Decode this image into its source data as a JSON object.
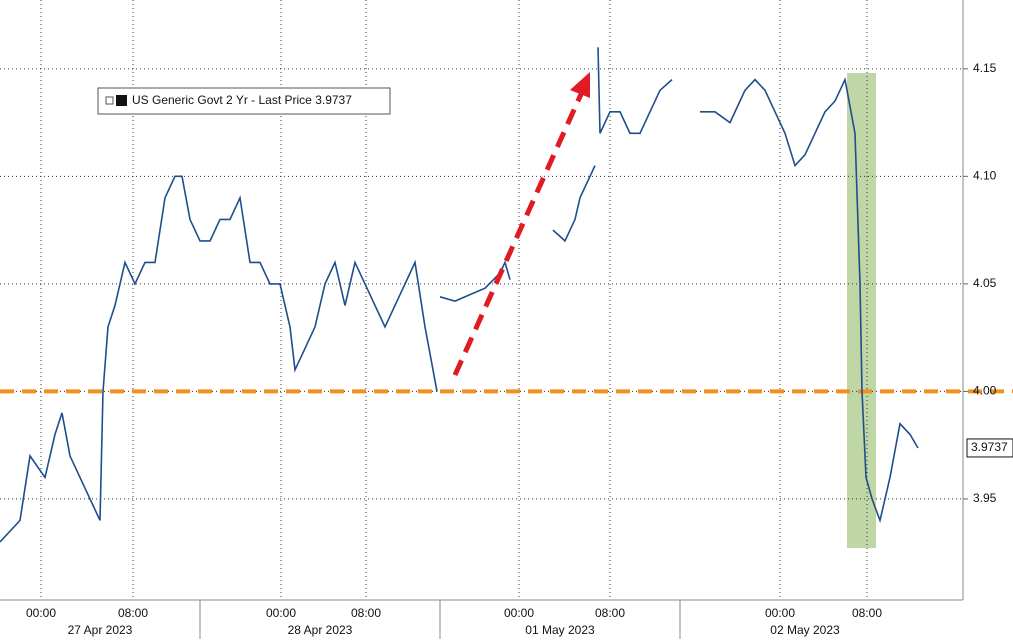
{
  "chart_data": {
    "type": "line",
    "xlim": [
      0,
      96.3
    ],
    "ylim": [
      3.903,
      4.182
    ],
    "xticks": [
      {
        "value": 4.1,
        "label": "00:00"
      },
      {
        "value": 13.3,
        "label": "08:00"
      },
      {
        "value": 28.1,
        "label": "00:00"
      },
      {
        "value": 36.6,
        "label": "08:00"
      },
      {
        "value": 51.9,
        "label": "00:00"
      },
      {
        "value": 61.0,
        "label": "08:00"
      },
      {
        "value": 78.0,
        "label": "00:00"
      },
      {
        "value": 86.7,
        "label": "08:00"
      }
    ],
    "date_labels": [
      {
        "value": 10,
        "label": "27 Apr 2023"
      },
      {
        "value": 32,
        "label": "28 Apr 2023"
      },
      {
        "value": 56,
        "label": "01 May 2023"
      },
      {
        "value": 80.5,
        "label": "02 May 2023"
      }
    ],
    "yticks": [
      3.95,
      {
        "value": 4,
        "label": "4.00"
      },
      4.05,
      {
        "value": 4.1,
        "label": "4.10"
      },
      4.15
    ],
    "hline": 4,
    "hline_color": "#f0901e",
    "grid": true,
    "last_price": 3.9737,
    "series": [
      {
        "name": "US Generic Govt 2 Yr - Last Price",
        "color": "#1f4e8c",
        "x": [
          0,
          2,
          3,
          4.5,
          5.5,
          6.2,
          7,
          8,
          9,
          10,
          10.3,
          10.8,
          11.5,
          12.5,
          13.5,
          14.5,
          15.5,
          16.5,
          17.5,
          18.2,
          19,
          20,
          21,
          22,
          23,
          24,
          25,
          26,
          27,
          28,
          29,
          29.5,
          30.5,
          31.5,
          32.5,
          33.5,
          34.5,
          35.5,
          36.5,
          37.5,
          38.5,
          39.5,
          40.5,
          41.5,
          42.5,
          43.7,
          null,
          44,
          45.5,
          47,
          48.5,
          50,
          50.5,
          51,
          null,
          55.3,
          56.5,
          57.5,
          58,
          59,
          59.5,
          null,
          59.8,
          60,
          61,
          62,
          63,
          64,
          65,
          66,
          67.2,
          null,
          70,
          71.5,
          73,
          74.5,
          75.5,
          76.5,
          77.5,
          78.5,
          79.5,
          80.5,
          81.5,
          82.5,
          83.5,
          84.5,
          85.5,
          86,
          86.2,
          86.6,
          87.2,
          88,
          89,
          90,
          91,
          91.8
        ],
        "values": [
          3.93,
          3.94,
          3.97,
          3.96,
          3.98,
          3.99,
          3.97,
          3.96,
          3.95,
          3.94,
          4.0,
          4.03,
          4.04,
          4.06,
          4.05,
          4.06,
          4.06,
          4.09,
          4.1,
          4.1,
          4.08,
          4.07,
          4.07,
          4.08,
          4.08,
          4.09,
          4.06,
          4.06,
          4.05,
          4.05,
          4.03,
          4.01,
          4.02,
          4.03,
          4.05,
          4.06,
          4.04,
          4.06,
          4.05,
          4.04,
          4.03,
          4.04,
          4.05,
          4.06,
          4.03,
          4.0,
          null,
          4.044,
          4.042,
          4.045,
          4.048,
          4.055,
          4.06,
          4.052,
          null,
          4.075,
          4.07,
          4.08,
          4.09,
          4.1,
          4.105,
          null,
          4.16,
          4.12,
          4.13,
          4.13,
          4.12,
          4.12,
          4.13,
          4.14,
          4.145,
          null,
          4.13,
          4.13,
          4.125,
          4.14,
          4.145,
          4.14,
          4.13,
          4.12,
          4.105,
          4.11,
          4.12,
          4.13,
          4.135,
          4.145,
          4.12,
          4.05,
          4.0,
          3.96,
          3.95,
          3.94,
          3.96,
          3.985,
          3.98,
          3.9737
        ]
      }
    ]
  }
}
